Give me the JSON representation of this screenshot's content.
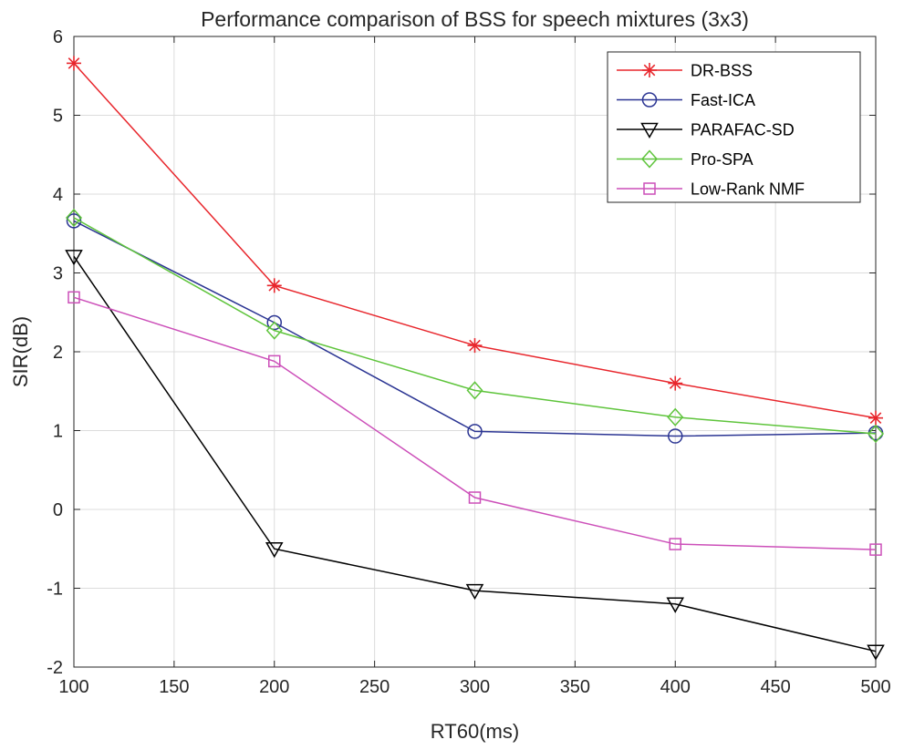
{
  "chart_data": {
    "type": "line",
    "title": "Performance comparison of BSS for speech mixtures (3x3)",
    "xlabel": "RT60(ms)",
    "ylabel": "SIR(dB)",
    "xlim": [
      100,
      500
    ],
    "ylim": [
      -2,
      6
    ],
    "xticks": [
      100,
      150,
      200,
      250,
      300,
      350,
      400,
      450,
      500
    ],
    "yticks": [
      -2,
      -1,
      0,
      1,
      2,
      3,
      4,
      5,
      6
    ],
    "grid": true,
    "legend_position": "top-right",
    "x": [
      100,
      200,
      300,
      400,
      500
    ],
    "series": [
      {
        "name": "DR-BSS",
        "color": "#e8262c",
        "marker": "asterisk",
        "values": [
          5.66,
          2.84,
          2.08,
          1.6,
          1.16
        ]
      },
      {
        "name": "Fast-ICA",
        "color": "#2b3593",
        "marker": "circle",
        "values": [
          3.66,
          2.37,
          0.99,
          0.93,
          0.97
        ]
      },
      {
        "name": "PARAFAC-SD",
        "color": "#000000",
        "marker": "triangle-down",
        "values": [
          3.21,
          -0.5,
          -1.03,
          -1.2,
          -1.8
        ]
      },
      {
        "name": "Pro-SPA",
        "color": "#5ec43b",
        "marker": "diamond",
        "values": [
          3.7,
          2.27,
          1.51,
          1.17,
          0.96
        ]
      },
      {
        "name": "Low-Rank NMF",
        "color": "#cc4fb9",
        "marker": "square",
        "values": [
          2.69,
          1.88,
          0.15,
          -0.44,
          -0.51
        ]
      }
    ]
  }
}
